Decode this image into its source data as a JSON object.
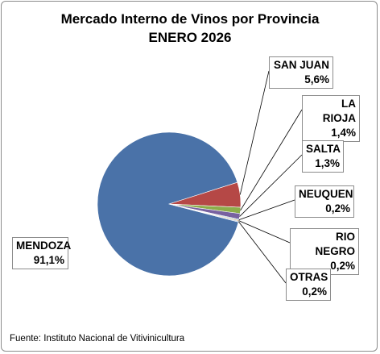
{
  "chart_data": {
    "type": "pie",
    "title": "Mercado Interno de Vinos por Provincia",
    "subtitle": "ENERO 2026",
    "slices": [
      {
        "label": "MENDOZA",
        "value": 91.1,
        "display": "91,1%",
        "color": "#4a72a8"
      },
      {
        "label": "SAN JUAN",
        "value": 5.6,
        "display": "5,6%",
        "color": "#b54846"
      },
      {
        "label": "LA RIOJA",
        "value": 1.4,
        "display": "1,4%",
        "color": "#8cad4a"
      },
      {
        "label": "SALTA",
        "value": 1.3,
        "display": "1,3%",
        "color": "#7862a0"
      },
      {
        "label": "NEUQUEN",
        "value": 0.2,
        "display": "0,2%",
        "color": "#3fa3bd"
      },
      {
        "label": "RIO NEGRO",
        "value": 0.2,
        "display": "0,2%",
        "color": "#e08b3a"
      },
      {
        "label": "OTRAS",
        "value": 0.2,
        "display": "0,2%",
        "color": "#9db7d8"
      }
    ]
  },
  "source": "Fuente: Instituto Nacional de Vitivinicultura"
}
